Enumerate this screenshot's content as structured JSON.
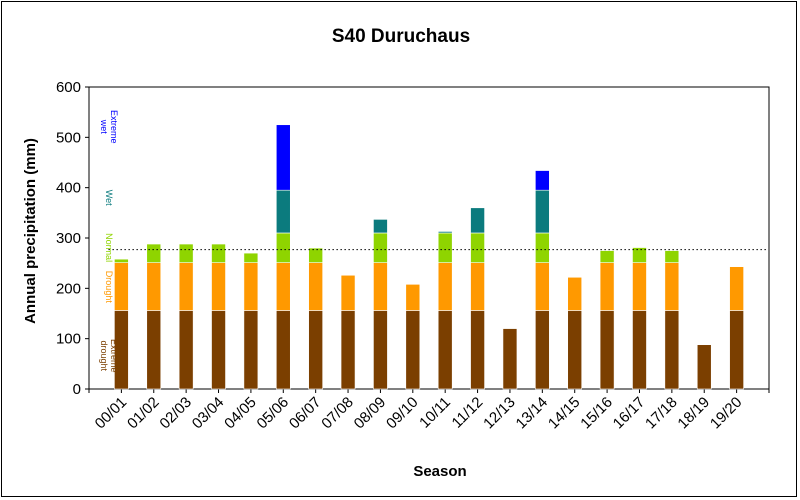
{
  "chart_data": {
    "type": "bar",
    "stacked": true,
    "title": "S40 Duruchaus",
    "xlabel": "Season",
    "ylabel": "Annual precipitation (mm)",
    "ylim": [
      0,
      600
    ],
    "yticks": [
      0,
      100,
      200,
      300,
      400,
      500,
      600
    ],
    "grid": false,
    "categories": [
      "00/01",
      "01/02",
      "02/03",
      "03/04",
      "04/05",
      "05/06",
      "06/07",
      "07/08",
      "08/09",
      "09/10",
      "10/11",
      "11/12",
      "12/13",
      "13/14",
      "14/15",
      "15/16",
      "16/17",
      "17/18",
      "18/19",
      "19/20"
    ],
    "values": [
      258,
      288,
      288,
      288,
      270,
      525,
      280,
      226,
      337,
      208,
      313,
      360,
      120,
      434,
      222,
      275,
      281,
      275,
      88,
      243
    ],
    "class_bounds": [
      156,
      251,
      310,
      395
    ],
    "mean_line": 277,
    "zones": [
      {
        "label": "Extreme drought",
        "color": "#7b3f00"
      },
      {
        "label": "Drought",
        "color": "#ff9900"
      },
      {
        "label": "Normal",
        "color": "#8fd400"
      },
      {
        "label": "Wet",
        "color": "#0b7b7e"
      },
      {
        "label": "Extreme wet",
        "color": "#0000ff"
      }
    ]
  }
}
